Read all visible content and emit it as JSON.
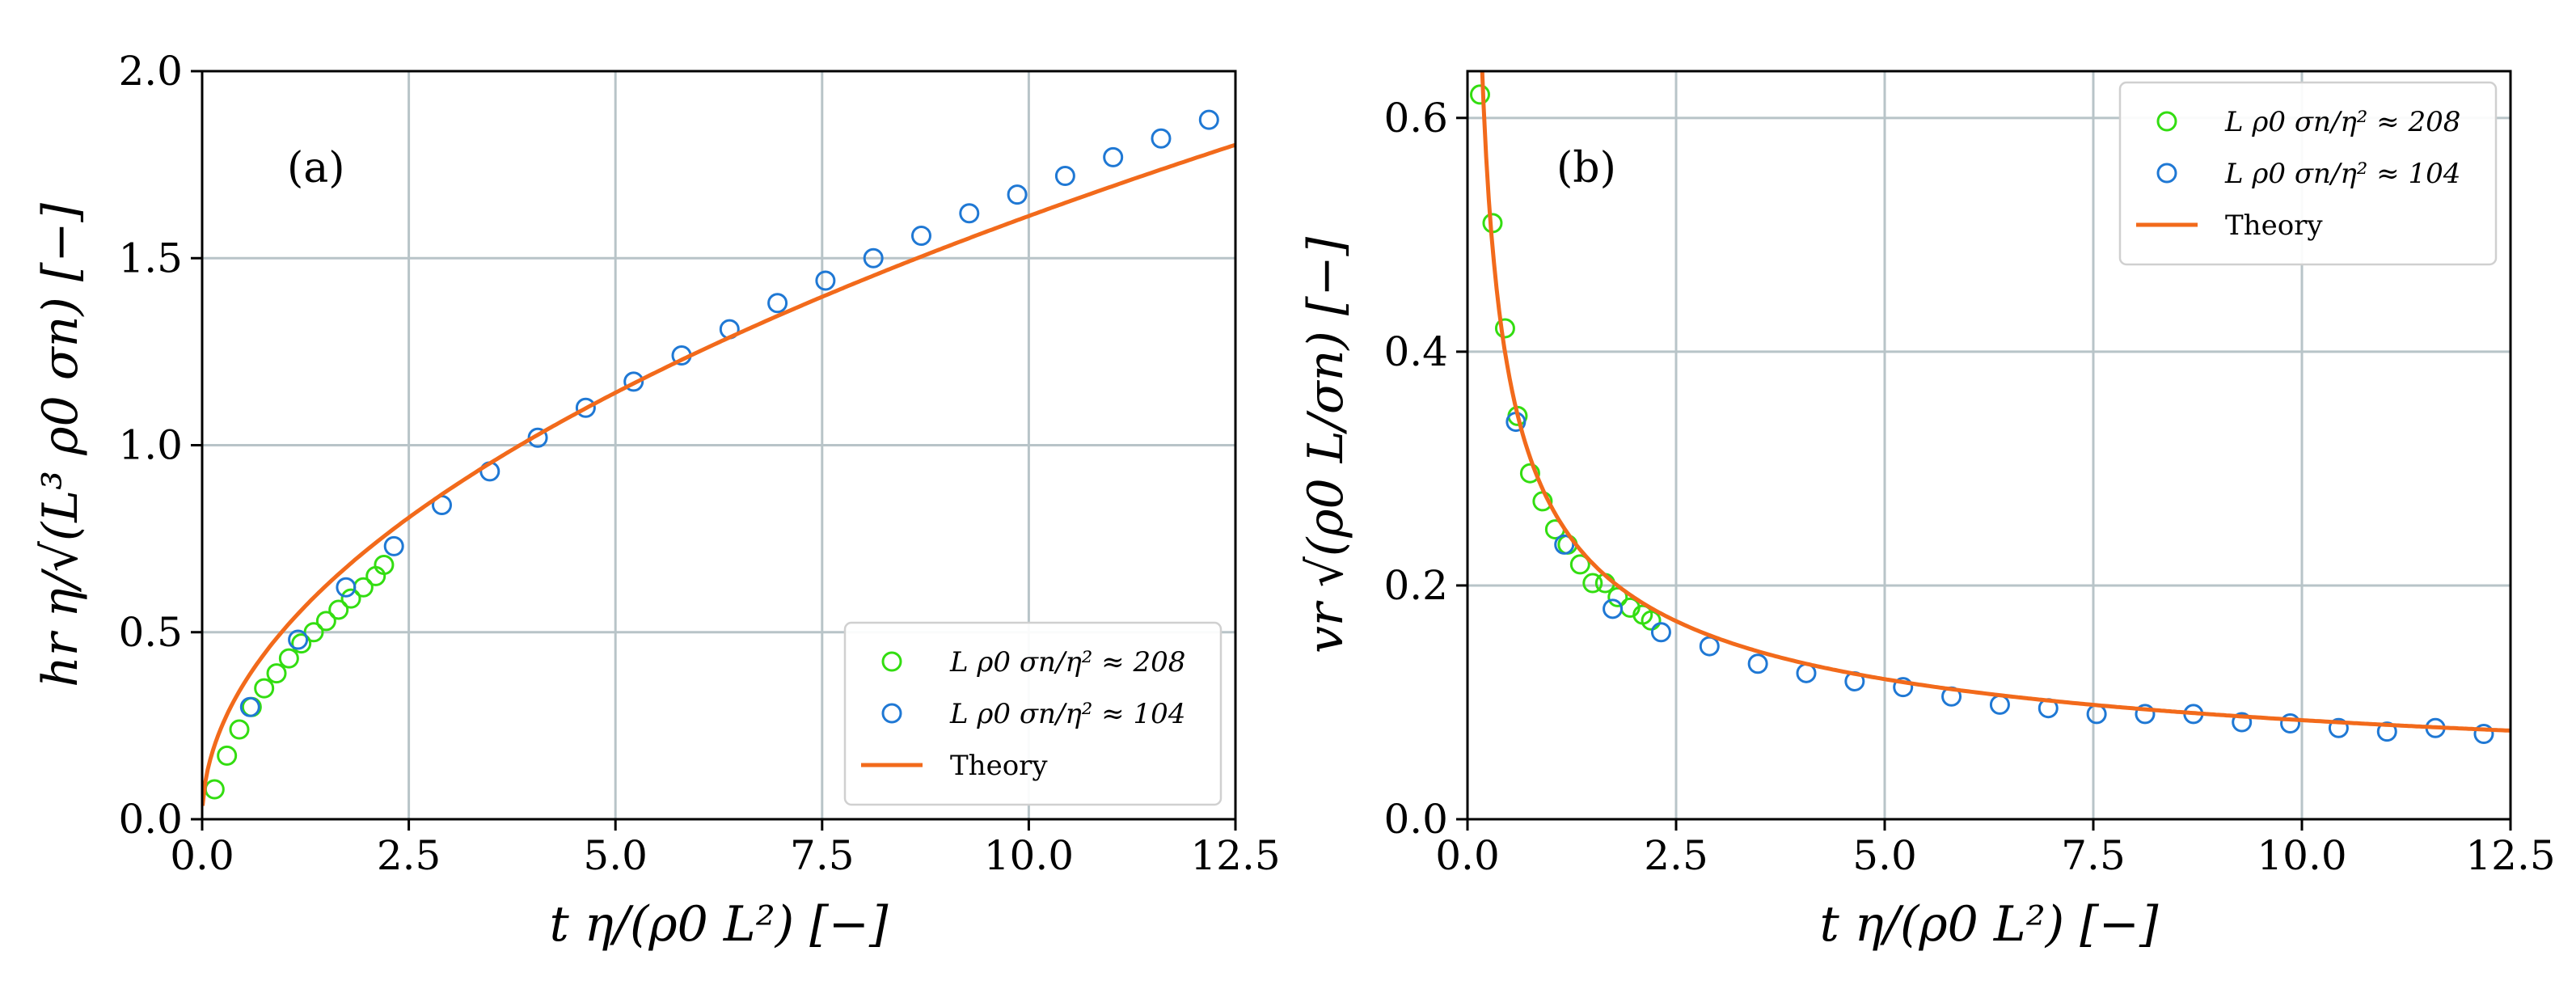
{
  "chart_data": [
    {
      "type": "scatter",
      "panel_label": "(a)",
      "xlabel": "t η/(ρ0 L²) [−]",
      "ylabel": "hr η/√(L³ ρ0 σn) [−]",
      "xlim": [
        0,
        12.5
      ],
      "ylim": [
        0,
        2.0
      ],
      "xticks": [
        "0.0",
        "2.5",
        "5.0",
        "7.5",
        "10.0",
        "12.5"
      ],
      "yticks": [
        "0.0",
        "0.5",
        "1.0",
        "1.5",
        "2.0"
      ],
      "grid": true,
      "legend_position": "lower-right",
      "series": [
        {
          "name": "L ρ0 σn/η² ≈ 208",
          "color": "#33dd11",
          "marker": "open-circle",
          "x": [
            0.15,
            0.3,
            0.45,
            0.6,
            0.75,
            0.9,
            1.05,
            1.2,
            1.35,
            1.5,
            1.65,
            1.8,
            1.95,
            2.1,
            2.2
          ],
          "y": [
            0.08,
            0.17,
            0.24,
            0.3,
            0.35,
            0.39,
            0.43,
            0.47,
            0.5,
            0.53,
            0.56,
            0.59,
            0.62,
            0.65,
            0.68
          ]
        },
        {
          "name": "L ρ0 σn/η² ≈ 104",
          "color": "#1f78d4",
          "marker": "open-circle",
          "x": [
            0.58,
            1.16,
            1.74,
            2.32,
            2.9,
            3.48,
            4.06,
            4.64,
            5.22,
            5.8,
            6.38,
            6.96,
            7.54,
            8.12,
            8.7,
            9.28,
            9.86,
            10.44,
            11.02,
            11.6,
            12.18
          ],
          "y": [
            0.3,
            0.48,
            0.62,
            0.73,
            0.84,
            0.93,
            1.02,
            1.1,
            1.17,
            1.24,
            1.31,
            1.38,
            1.44,
            1.5,
            1.56,
            1.62,
            1.67,
            1.72,
            1.77,
            1.82,
            1.87
          ]
        },
        {
          "name": "Theory",
          "color": "#f26a1b",
          "marker": "line",
          "model": "power",
          "coefficient": 0.51,
          "exponent": 0.5
        }
      ]
    },
    {
      "type": "scatter",
      "panel_label": "(b)",
      "xlabel": "t η/(ρ0 L²) [−]",
      "ylabel": "vr √(ρ0 L/σn) [−]",
      "xlim": [
        0,
        12.5
      ],
      "ylim": [
        0,
        0.64
      ],
      "xticks": [
        "0.0",
        "2.5",
        "5.0",
        "7.5",
        "10.0",
        "12.5"
      ],
      "yticks": [
        "0.0",
        "0.2",
        "0.4",
        "0.6"
      ],
      "grid": true,
      "legend_position": "upper-right",
      "series": [
        {
          "name": "L ρ0 σn/η² ≈ 208",
          "color": "#33dd11",
          "marker": "open-circle",
          "x": [
            0.15,
            0.3,
            0.45,
            0.6,
            0.75,
            0.9,
            1.05,
            1.2,
            1.35,
            1.5,
            1.65,
            1.8,
            1.95,
            2.1,
            2.2
          ],
          "y": [
            0.62,
            0.51,
            0.42,
            0.345,
            0.296,
            0.272,
            0.248,
            0.235,
            0.218,
            0.202,
            0.202,
            0.19,
            0.181,
            0.175,
            0.17
          ]
        },
        {
          "name": "L ρ0 σn/η² ≈ 104",
          "color": "#1f78d4",
          "marker": "open-circle",
          "x": [
            0.58,
            1.16,
            1.74,
            2.32,
            2.9,
            3.48,
            4.06,
            4.64,
            5.22,
            5.8,
            6.38,
            6.96,
            7.54,
            8.12,
            8.7,
            9.28,
            9.86,
            10.44,
            11.02,
            11.6,
            12.18
          ],
          "y": [
            0.34,
            0.235,
            0.18,
            0.16,
            0.148,
            0.133,
            0.125,
            0.118,
            0.113,
            0.105,
            0.098,
            0.095,
            0.09,
            0.09,
            0.09,
            0.083,
            0.082,
            0.078,
            0.075,
            0.078,
            0.073
          ]
        },
        {
          "name": "Theory",
          "color": "#f26a1b",
          "marker": "line",
          "model": "power",
          "coefficient": 0.268,
          "exponent": -0.5
        }
      ]
    }
  ]
}
